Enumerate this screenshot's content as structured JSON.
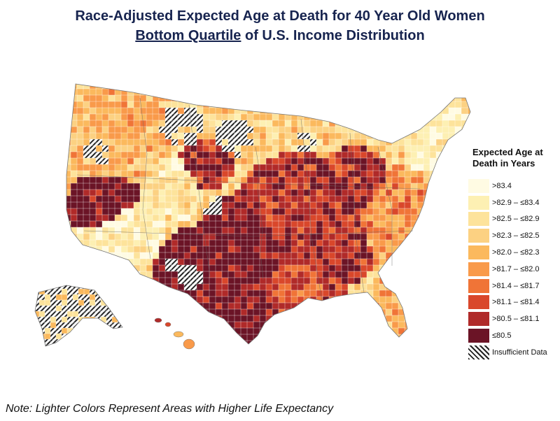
{
  "title_line1": "Race-Adjusted Expected Age at Death for 40 Year Old Women",
  "title_line2_underlined": "Bottom Quartile",
  "title_line2_rest": " of U.S. Income Distribution",
  "legend": {
    "title_line1": "Expected Age at",
    "title_line2": "Death in Years",
    "items": [
      {
        "label": ">83.4",
        "color": "#fffbe3"
      },
      {
        "label": ">82.9 – ≤83.4",
        "color": "#fdf0b3"
      },
      {
        "label": ">82.5 – ≤82.9",
        "color": "#fde39b"
      },
      {
        "label": ">82.3 – ≤82.5",
        "color": "#fcd182"
      },
      {
        "label": ">82.0 – ≤82.3",
        "color": "#fbb95d"
      },
      {
        "label": ">81.7 – ≤82.0",
        "color": "#f99a4a"
      },
      {
        "label": ">81.4 – ≤81.7",
        "color": "#f07437"
      },
      {
        "label": ">81.1 – ≤81.4",
        "color": "#d9472b"
      },
      {
        "label": ">80.5 – ≤81.1",
        "color": "#b02a29"
      },
      {
        "label": "≤80.5",
        "color": "#6b1426"
      },
      {
        "label": "Insufficient Data",
        "color": "hatch"
      }
    ]
  },
  "note": "Note: Lighter Colors Represent Areas with Higher Life Expectancy"
}
